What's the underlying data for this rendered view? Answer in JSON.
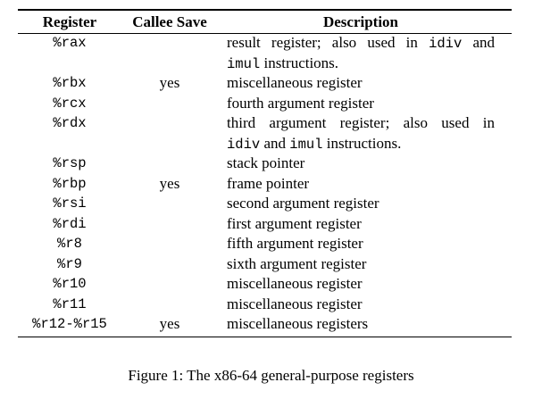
{
  "table": {
    "headers": {
      "register": "Register",
      "callee_save": "Callee Save",
      "description": "Description"
    },
    "rows": [
      {
        "register": "%rax",
        "callee_save": "",
        "description_lines": [
          [
            {
              "t": "result register; also used in "
            },
            {
              "t": "idiv",
              "code": true
            },
            {
              "t": " and"
            }
          ],
          [
            {
              "t": "imul",
              "code": true
            },
            {
              "t": " instructions."
            }
          ]
        ]
      },
      {
        "register": "%rbx",
        "callee_save": "yes",
        "description_lines": [
          [
            {
              "t": "miscellaneous register"
            }
          ]
        ]
      },
      {
        "register": "%rcx",
        "callee_save": "",
        "description_lines": [
          [
            {
              "t": "fourth argument register"
            }
          ]
        ]
      },
      {
        "register": "%rdx",
        "callee_save": "",
        "description_lines": [
          [
            {
              "t": "third argument register; also used in"
            }
          ],
          [
            {
              "t": "idiv",
              "code": true
            },
            {
              "t": " and "
            },
            {
              "t": "imul",
              "code": true
            },
            {
              "t": " instructions."
            }
          ]
        ]
      },
      {
        "register": "%rsp",
        "callee_save": "",
        "description_lines": [
          [
            {
              "t": "stack pointer"
            }
          ]
        ]
      },
      {
        "register": "%rbp",
        "callee_save": "yes",
        "description_lines": [
          [
            {
              "t": "frame pointer"
            }
          ]
        ]
      },
      {
        "register": "%rsi",
        "callee_save": "",
        "description_lines": [
          [
            {
              "t": "second argument register"
            }
          ]
        ]
      },
      {
        "register": "%rdi",
        "callee_save": "",
        "description_lines": [
          [
            {
              "t": "first argument register"
            }
          ]
        ]
      },
      {
        "register": "%r8",
        "callee_save": "",
        "description_lines": [
          [
            {
              "t": "fifth argument register"
            }
          ]
        ]
      },
      {
        "register": "%r9",
        "callee_save": "",
        "description_lines": [
          [
            {
              "t": "sixth argument register"
            }
          ]
        ]
      },
      {
        "register": "%r10",
        "callee_save": "",
        "description_lines": [
          [
            {
              "t": "miscellaneous register"
            }
          ]
        ]
      },
      {
        "register": "%r11",
        "callee_save": "",
        "description_lines": [
          [
            {
              "t": "miscellaneous register"
            }
          ]
        ]
      },
      {
        "register": "%r12-%r15",
        "callee_save": "yes",
        "description_lines": [
          [
            {
              "t": "miscellaneous registers"
            }
          ]
        ]
      }
    ]
  },
  "caption": "Figure 1: The x86-64 general-purpose registers"
}
